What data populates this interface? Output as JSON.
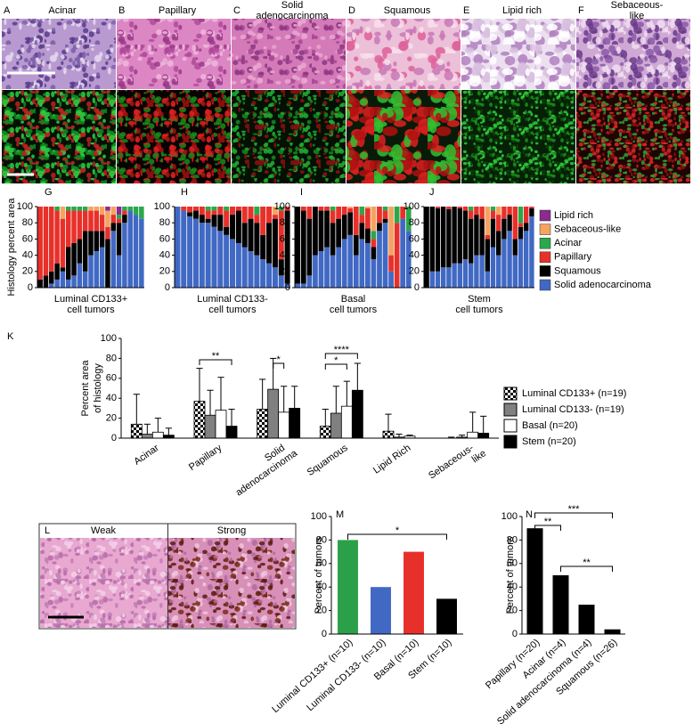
{
  "images": [
    {
      "label": "A",
      "title": [
        "Acinar"
      ]
    },
    {
      "label": "B",
      "title": [
        "Papillary"
      ]
    },
    {
      "label": "C",
      "title": [
        "Solid",
        "adenocarcinoma"
      ]
    },
    {
      "label": "D",
      "title": [
        "Squamous"
      ]
    },
    {
      "label": "E",
      "title": [
        "Lipid rich"
      ]
    },
    {
      "label": "F",
      "title": [
        "Sebaceous-",
        "like"
      ]
    }
  ],
  "panel_l": {
    "label": "L",
    "panels": [
      "Weak",
      "Strong"
    ]
  },
  "chart_data": [
    {
      "type": "bar",
      "stacked": true,
      "label": "G",
      "ylabel": "Histology percent area",
      "xlabel": [
        "Luminal CD133+",
        "cell tumors"
      ],
      "ylim": [
        0,
        100
      ],
      "yticks": [
        0,
        20,
        40,
        60,
        80,
        100
      ],
      "series": [
        {
          "name": "Solid adenocarcinoma",
          "color": "#4169c4",
          "values": [
            0,
            0,
            5,
            10,
            20,
            10,
            15,
            30,
            20,
            40,
            45,
            50,
            0,
            70,
            40,
            80,
            95,
            90,
            85
          ]
        },
        {
          "name": "Squamous",
          "color": "#000000",
          "values": [
            10,
            15,
            15,
            20,
            5,
            40,
            40,
            30,
            50,
            30,
            25,
            20,
            60,
            10,
            40,
            10,
            0,
            0,
            0
          ]
        },
        {
          "name": "Papillary",
          "color": "#e8302a",
          "values": [
            90,
            85,
            80,
            65,
            60,
            45,
            40,
            35,
            25,
            25,
            25,
            20,
            15,
            10,
            5,
            5,
            0,
            0,
            0
          ]
        },
        {
          "name": "Acinar",
          "color": "#2aa84a",
          "values": [
            0,
            0,
            0,
            5,
            0,
            5,
            5,
            5,
            5,
            0,
            0,
            0,
            0,
            0,
            5,
            5,
            5,
            10,
            15
          ]
        },
        {
          "name": "Sebaceous-like",
          "color": "#f4a460",
          "values": [
            0,
            0,
            0,
            0,
            15,
            0,
            0,
            0,
            0,
            5,
            5,
            10,
            20,
            10,
            0,
            0,
            0,
            0,
            0
          ]
        },
        {
          "name": "Lipid rich",
          "color": "#8b2a8f",
          "values": [
            0,
            0,
            0,
            0,
            0,
            0,
            0,
            0,
            0,
            0,
            0,
            0,
            5,
            0,
            10,
            0,
            0,
            0,
            0
          ]
        }
      ]
    },
    {
      "type": "bar",
      "stacked": true,
      "label": "H",
      "xlabel": [
        "Luminal CD133-",
        "cell tumors"
      ],
      "ylim": [
        0,
        100
      ],
      "yticks": [
        0,
        20,
        40,
        60,
        80,
        100
      ],
      "series": [
        {
          "name": "Solid adenocarcinoma",
          "color": "#4169c4",
          "values": [
            100,
            95,
            88,
            85,
            80,
            80,
            75,
            70,
            65,
            60,
            55,
            50,
            45,
            40,
            35,
            30,
            25,
            15,
            5
          ]
        },
        {
          "name": "Squamous",
          "color": "#000000",
          "values": [
            0,
            0,
            5,
            10,
            10,
            5,
            15,
            20,
            10,
            30,
            40,
            30,
            40,
            40,
            30,
            50,
            60,
            20,
            90
          ]
        },
        {
          "name": "Papillary",
          "color": "#e8302a",
          "values": [
            0,
            5,
            7,
            5,
            10,
            10,
            5,
            10,
            20,
            10,
            5,
            20,
            15,
            10,
            35,
            20,
            5,
            60,
            5
          ]
        },
        {
          "name": "Acinar",
          "color": "#2aa84a",
          "values": [
            0,
            0,
            0,
            0,
            0,
            5,
            5,
            0,
            5,
            0,
            0,
            0,
            0,
            10,
            0,
            0,
            0,
            5,
            0
          ]
        },
        {
          "name": "Sebaceous-like",
          "color": "#f4a460",
          "values": [
            0,
            0,
            0,
            0,
            0,
            0,
            0,
            0,
            0,
            0,
            0,
            0,
            0,
            0,
            0,
            0,
            10,
            0,
            0
          ]
        },
        {
          "name": "Lipid rich",
          "color": "#8b2a8f",
          "values": [
            0,
            0,
            0,
            0,
            0,
            0,
            0,
            0,
            0,
            0,
            0,
            0,
            0,
            0,
            0,
            0,
            0,
            0,
            0
          ]
        }
      ]
    },
    {
      "type": "bar",
      "stacked": true,
      "label": "I",
      "xlabel": [
        "Basal",
        "cell tumors"
      ],
      "ylim": [
        0,
        100
      ],
      "yticks": [
        0,
        20,
        40,
        60,
        80,
        100
      ],
      "series": [
        {
          "name": "Solid adenocarcinoma",
          "color": "#4169c4",
          "values": [
            5,
            5,
            15,
            40,
            45,
            50,
            40,
            50,
            60,
            65,
            40,
            60,
            55,
            35,
            70,
            80,
            20,
            0,
            85,
            70
          ]
        },
        {
          "name": "Squamous",
          "color": "#000000",
          "values": [
            95,
            90,
            70,
            60,
            50,
            45,
            40,
            35,
            30,
            28,
            25,
            20,
            18,
            15,
            10,
            5,
            0,
            0,
            0,
            0
          ]
        },
        {
          "name": "Papillary",
          "color": "#e8302a",
          "values": [
            0,
            5,
            15,
            0,
            5,
            5,
            15,
            15,
            10,
            5,
            35,
            10,
            25,
            10,
            20,
            10,
            20,
            80,
            15,
            0
          ]
        },
        {
          "name": "Acinar",
          "color": "#2aa84a",
          "values": [
            0,
            0,
            0,
            0,
            0,
            0,
            5,
            0,
            0,
            0,
            0,
            10,
            0,
            10,
            0,
            5,
            0,
            20,
            0,
            30
          ]
        },
        {
          "name": "Sebaceous-like",
          "color": "#f4a460",
          "values": [
            0,
            0,
            0,
            0,
            0,
            0,
            0,
            0,
            0,
            2,
            0,
            0,
            2,
            30,
            0,
            0,
            60,
            0,
            0,
            0
          ]
        },
        {
          "name": "Lipid rich",
          "color": "#8b2a8f",
          "values": [
            0,
            0,
            0,
            0,
            0,
            0,
            0,
            0,
            0,
            0,
            0,
            0,
            0,
            0,
            0,
            0,
            0,
            0,
            0,
            0
          ]
        }
      ]
    },
    {
      "type": "bar",
      "stacked": true,
      "label": "J",
      "xlabel": [
        "Stem",
        "cell tumors"
      ],
      "ylim": [
        0,
        100
      ],
      "yticks": [
        0,
        20,
        40,
        60,
        80,
        100
      ],
      "series": [
        {
          "name": "Solid adenocarcinoma",
          "color": "#4169c4",
          "values": [
            0,
            20,
            20,
            25,
            25,
            30,
            30,
            35,
            30,
            40,
            40,
            20,
            50,
            40,
            60,
            70,
            40,
            60,
            70,
            88
          ]
        },
        {
          "name": "Squamous",
          "color": "#000000",
          "values": [
            100,
            80,
            78,
            75,
            72,
            70,
            68,
            60,
            55,
            50,
            45,
            40,
            35,
            30,
            25,
            20,
            20,
            15,
            10,
            10
          ]
        },
        {
          "name": "Papillary",
          "color": "#e8302a",
          "values": [
            0,
            0,
            2,
            0,
            3,
            0,
            2,
            5,
            10,
            10,
            15,
            5,
            10,
            20,
            15,
            10,
            40,
            5,
            20,
            2
          ]
        },
        {
          "name": "Acinar",
          "color": "#2aa84a",
          "values": [
            0,
            0,
            0,
            0,
            0,
            0,
            0,
            0,
            5,
            0,
            0,
            0,
            5,
            0,
            0,
            0,
            0,
            20,
            0,
            0
          ]
        },
        {
          "name": "Sebaceous-like",
          "color": "#f4a460",
          "values": [
            0,
            0,
            0,
            0,
            0,
            0,
            0,
            0,
            0,
            0,
            0,
            35,
            0,
            10,
            0,
            0,
            0,
            0,
            0,
            0
          ]
        },
        {
          "name": "Lipid rich",
          "color": "#8b2a8f",
          "values": [
            0,
            0,
            0,
            0,
            0,
            0,
            0,
            0,
            0,
            0,
            0,
            0,
            0,
            0,
            0,
            0,
            0,
            0,
            0,
            0
          ]
        }
      ]
    },
    {
      "type": "bar",
      "label": "K",
      "ylabel": [
        "Percent area",
        "of histology"
      ],
      "categories": [
        "Acinar",
        "Papillary",
        [
          "Solid",
          "adenocarcinoma"
        ],
        "Squamous",
        "Lipid Rich",
        [
          "Sebaceous-",
          "like"
        ]
      ],
      "ylim": [
        0,
        100
      ],
      "yticks": [
        0,
        20,
        40,
        60,
        80,
        100
      ],
      "series": [
        {
          "name": "Luminal CD133+ (n=19)",
          "color": "#000000",
          "pattern": "checkerboard",
          "values": [
            14,
            37,
            29,
            12,
            7,
            0
          ],
          "errors": [
            30,
            33,
            30,
            17,
            17,
            1
          ]
        },
        {
          "name": "Luminal CD133- (n=19)",
          "color": "#808080",
          "values": [
            4,
            23,
            49,
            25,
            1,
            1
          ],
          "errors": [
            10,
            25,
            31,
            27,
            3,
            2
          ]
        },
        {
          "name": "Basal (n=20)",
          "color": "#ffffff",
          "values": [
            6,
            28,
            26,
            32,
            2,
            6
          ],
          "errors": [
            14,
            33,
            26,
            25,
            1,
            20
          ]
        },
        {
          "name": "Stem (n=20)",
          "color": "#000000",
          "values": [
            3,
            12,
            30,
            48,
            0,
            5
          ],
          "errors": [
            7,
            17,
            22,
            27,
            0,
            17
          ]
        }
      ],
      "annotations": [
        "**",
        "*",
        "****",
        "*"
      ]
    },
    {
      "type": "bar",
      "label": "M",
      "ylabel": "Percent of tumors",
      "categories": [
        "Luminal CD133+ (n=10)",
        "Luminal CD133- (n=10)",
        "Basal (n=10)",
        "Stem (n=10)"
      ],
      "values": [
        80,
        40,
        70,
        30
      ],
      "colors": [
        "#2ca048",
        "#4169c4",
        "#e8302a",
        "#000000"
      ],
      "ylim": [
        0,
        100
      ],
      "yticks": [
        0,
        20,
        40,
        60,
        80,
        100
      ],
      "annotations": [
        "*"
      ]
    },
    {
      "type": "bar",
      "label": "N",
      "ylabel": "Percent of tumors",
      "categories": [
        "Papillary (n=20)",
        "Acinar (n=4)",
        "Solid adenocarcinoma (n=4)",
        "Squamous (n=26)"
      ],
      "values": [
        90,
        50,
        25,
        4
      ],
      "color": "#000000",
      "ylim": [
        0,
        100
      ],
      "yticks": [
        0,
        20,
        40,
        60,
        80,
        100
      ],
      "annotations": [
        "***",
        "**",
        "**"
      ]
    }
  ]
}
